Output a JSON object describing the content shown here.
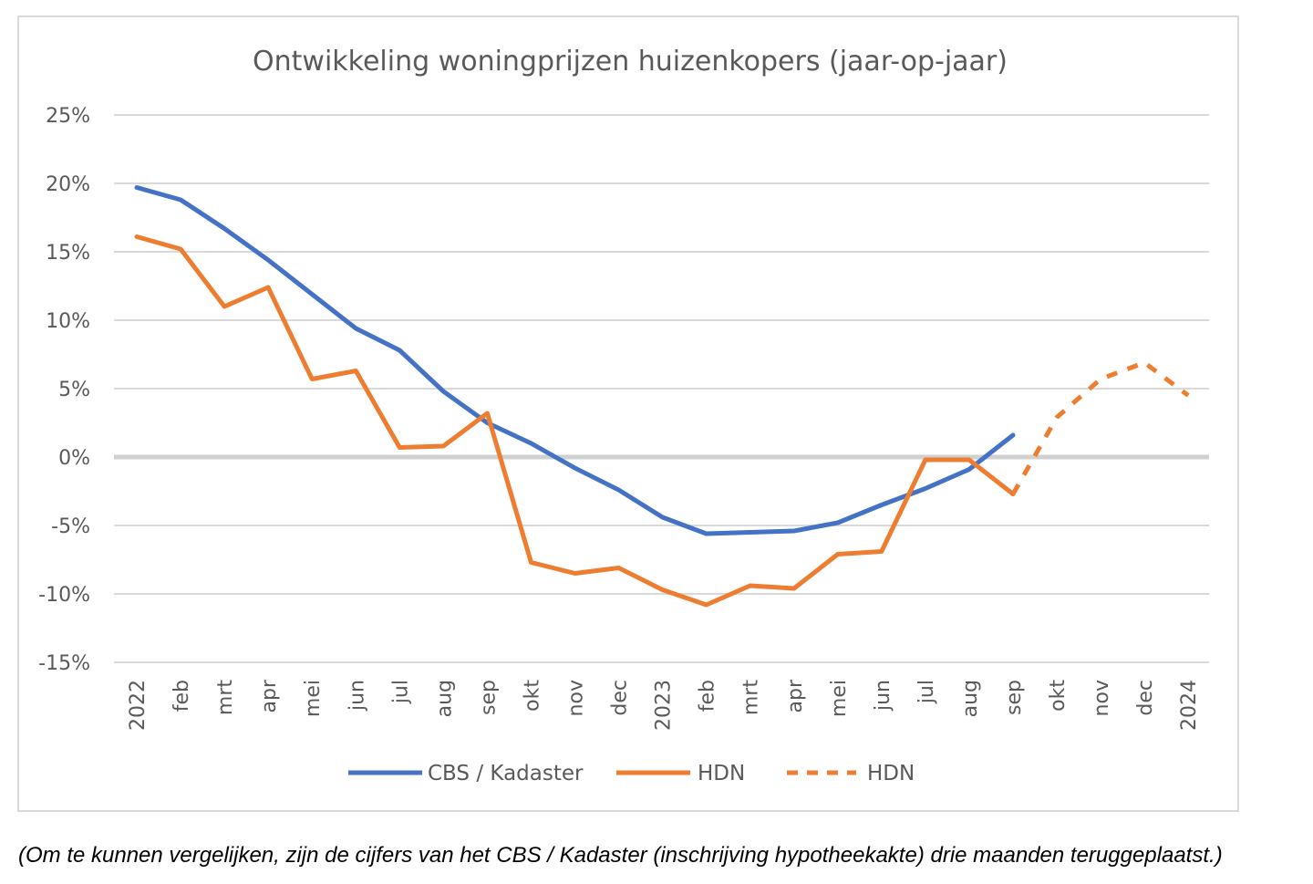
{
  "colors": {
    "cbs": "#4472c4",
    "hdn": "#ed7d31",
    "grid": "#d9d9d9",
    "zero_line": "#d0d0d0",
    "text": "#595959"
  },
  "chart_data": {
    "type": "line",
    "title": "Ontwikkeling woningprijzen huizenkopers (jaar-op-jaar)",
    "xlabel": "",
    "ylabel": "",
    "categories": [
      "2022",
      "feb",
      "mrt",
      "apr",
      "mei",
      "jun",
      "jul",
      "aug",
      "sep",
      "okt",
      "nov",
      "dec",
      "2023",
      "feb",
      "mrt",
      "apr",
      "mei",
      "jun",
      "jul",
      "aug",
      "sep",
      "okt",
      "nov",
      "dec",
      "2024"
    ],
    "ylim": [
      -15,
      25
    ],
    "yticks": [
      -15,
      -10,
      -5,
      0,
      5,
      10,
      15,
      20,
      25
    ],
    "ytick_labels": [
      "-15%",
      "-10%",
      "-5%",
      "0%",
      "5%",
      "10%",
      "15%",
      "20%",
      "25%"
    ],
    "grid": true,
    "legend_position": "bottom",
    "series": [
      {
        "name": "CBS / Kadaster",
        "style": "solid",
        "color": "#4472c4",
        "values": [
          19.7,
          18.8,
          16.7,
          14.4,
          11.9,
          9.4,
          7.8,
          4.8,
          2.5,
          1.0,
          -0.8,
          -2.4,
          -4.4,
          -5.6,
          -5.5,
          -5.4,
          -4.8,
          -3.5,
          -2.3,
          -0.9,
          1.6,
          null,
          null,
          null,
          null
        ]
      },
      {
        "name": "HDN",
        "style": "solid",
        "color": "#ed7d31",
        "values": [
          16.1,
          15.2,
          11.0,
          12.4,
          5.7,
          6.3,
          0.7,
          0.8,
          3.2,
          -7.7,
          -8.5,
          -8.1,
          -9.7,
          -10.8,
          -9.4,
          -9.6,
          -7.1,
          -6.9,
          -0.2,
          -0.2,
          -2.7,
          null,
          null,
          null,
          null
        ]
      },
      {
        "name": "HDN",
        "style": "dashed",
        "color": "#ed7d31",
        "values": [
          null,
          null,
          null,
          null,
          null,
          null,
          null,
          null,
          null,
          null,
          null,
          null,
          null,
          null,
          null,
          null,
          null,
          null,
          null,
          null,
          -2.7,
          2.9,
          5.7,
          6.9,
          4.5
        ]
      }
    ]
  },
  "footnote": "(Om te kunnen vergelijken, zijn de cijfers van het CBS / Kadaster (inschrijving hypotheekakte) drie maanden teruggeplaatst.)"
}
